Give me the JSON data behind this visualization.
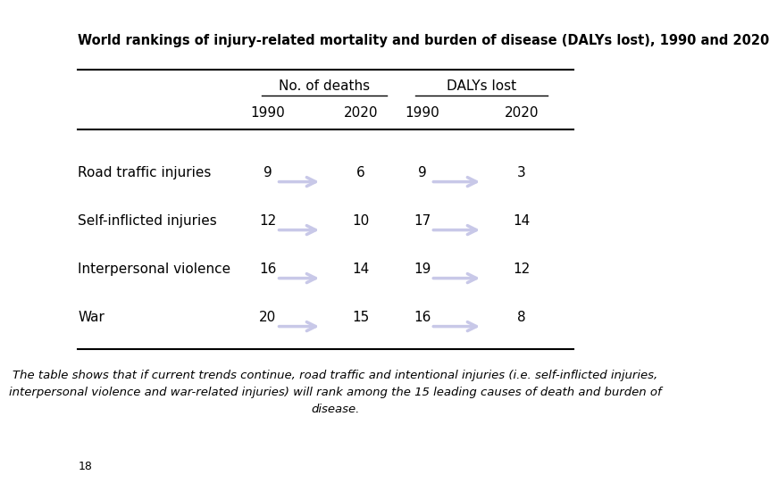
{
  "title": "World rankings of injury-related mortality and burden of disease (DALYs lost), 1990 and 2020",
  "col_header1": "No. of deaths",
  "col_header2": "DALYs lost",
  "sub_headers": [
    "1990",
    "2020",
    "1990",
    "2020"
  ],
  "rows": [
    {
      "label": "Road traffic injuries",
      "deaths_1990": "9",
      "deaths_2020": "6",
      "dalys_1990": "9",
      "dalys_2020": "3"
    },
    {
      "label": "Self-inflicted injuries",
      "deaths_1990": "12",
      "deaths_2020": "10",
      "dalys_1990": "17",
      "dalys_2020": "14"
    },
    {
      "label": "Interpersonal violence",
      "deaths_1990": "16",
      "deaths_2020": "14",
      "dalys_1990": "19",
      "dalys_2020": "12"
    },
    {
      "label": "War",
      "deaths_1990": "20",
      "deaths_2020": "15",
      "dalys_1990": "16",
      "dalys_2020": "8"
    }
  ],
  "footnote_line1": "The table shows that if current trends continue, road traffic and intentional injuries (i.e. self-inflicted injuries,",
  "footnote_line2": "interpersonal violence and war-related injuries) will rank among the 15 leading causes of death and burden of",
  "footnote_line3": "disease.",
  "page_number": "18",
  "arrow_color": "#c8c8e8",
  "bg_color": "#ffffff",
  "text_color": "#000000",
  "title_fontsize": 10.5,
  "header_fontsize": 11,
  "data_fontsize": 11,
  "footnote_fontsize": 9.5,
  "page_fontsize": 9
}
